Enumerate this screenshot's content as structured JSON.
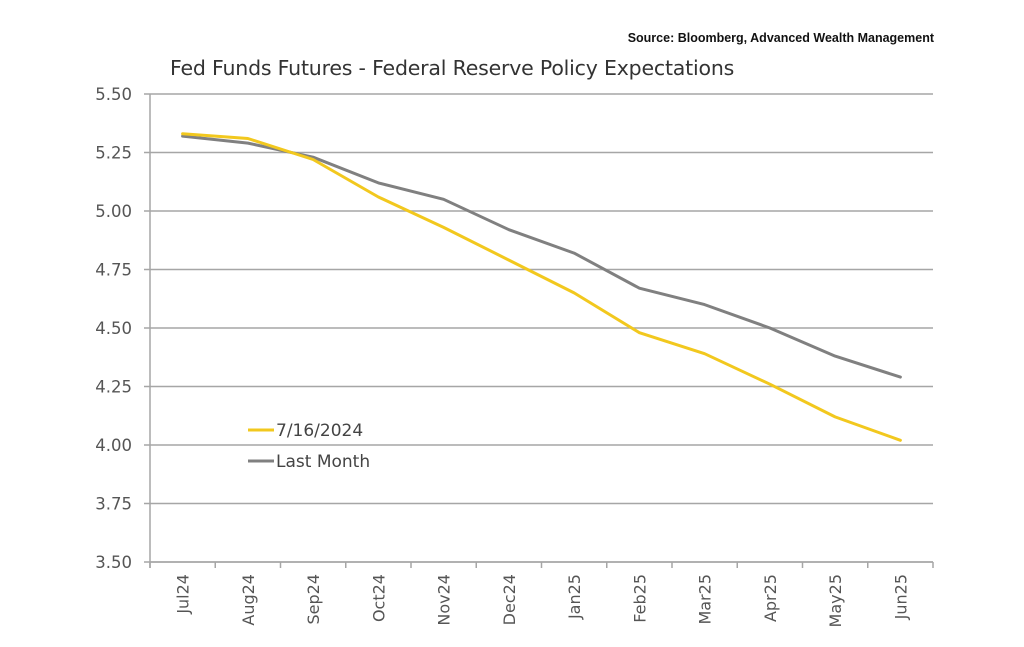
{
  "source_note": "Source: Bloomberg, Advanced Wealth Management",
  "chart_data": {
    "type": "line",
    "title": "Fed Funds Futures - Federal Reserve Policy Expectations",
    "xlabel": "",
    "ylabel": "",
    "categories": [
      "Jul24",
      "Aug24",
      "Sep24",
      "Oct24",
      "Nov24",
      "Dec24",
      "Jan25",
      "Feb25",
      "Mar25",
      "Apr25",
      "May25",
      "Jun25"
    ],
    "ylim": [
      3.5,
      5.5
    ],
    "yticks": [
      "5.50",
      "5.25",
      "5.00",
      "4.75",
      "4.50",
      "4.25",
      "4.00",
      "3.75",
      "3.50"
    ],
    "ytick_values": [
      5.5,
      5.25,
      5.0,
      4.75,
      4.5,
      4.25,
      4.0,
      3.75,
      3.5
    ],
    "grid": "horizontal",
    "legend_position": "lower-left",
    "series": [
      {
        "name": "7/16/2024",
        "color": "#F2C81E",
        "values": [
          5.33,
          5.31,
          5.22,
          5.06,
          4.93,
          4.79,
          4.65,
          4.48,
          4.39,
          4.26,
          4.12,
          4.02
        ]
      },
      {
        "name": "Last Month",
        "color": "#808080",
        "values": [
          5.32,
          5.29,
          5.23,
          5.12,
          5.05,
          4.92,
          4.82,
          4.67,
          4.6,
          4.5,
          4.38,
          4.29
        ]
      }
    ]
  }
}
